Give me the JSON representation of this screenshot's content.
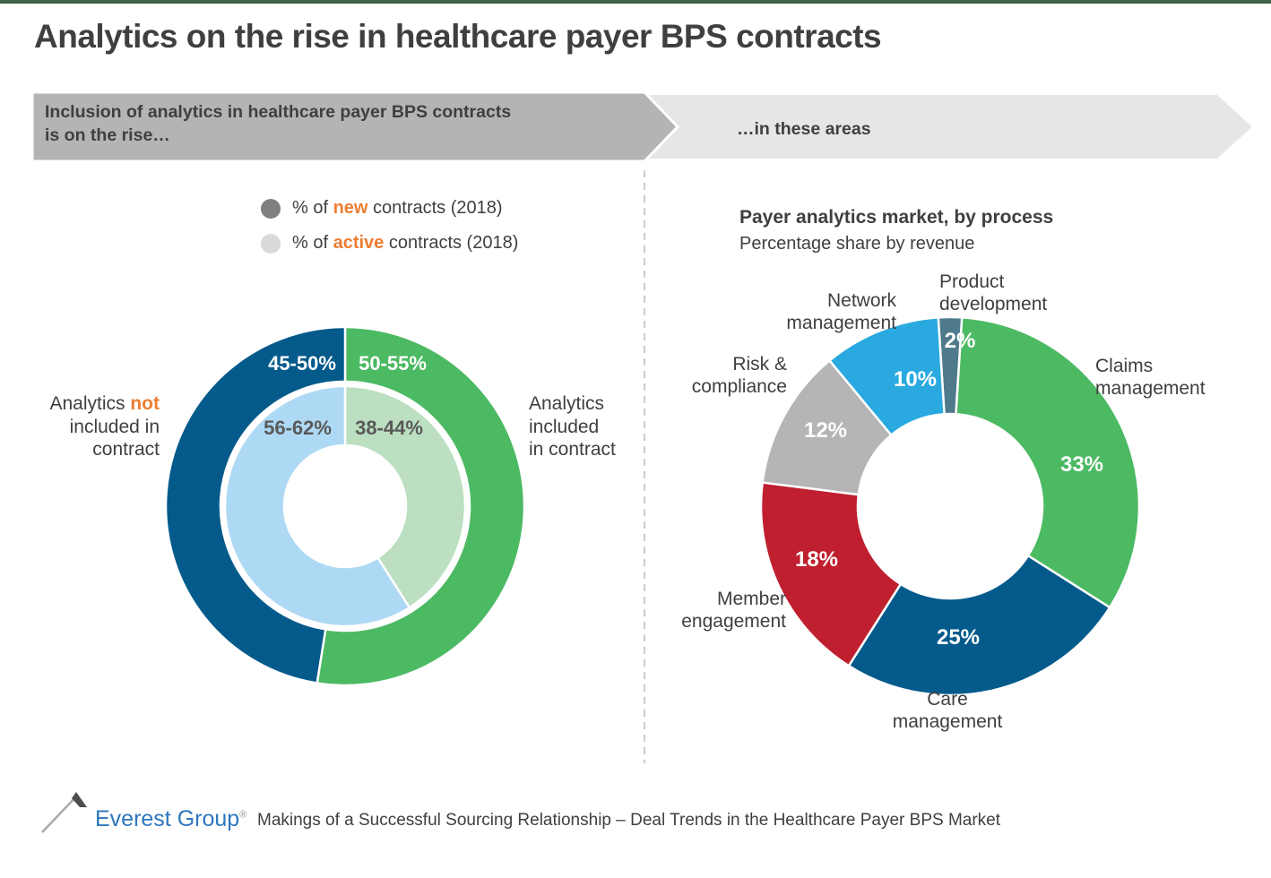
{
  "page": {
    "title": "Analytics on the rise in healthcare payer BPS contracts",
    "top_bar_color": "#3e6347"
  },
  "colors": {
    "orange_accent": "#ed7d31",
    "dark_blue": "#045a8b",
    "green": "#4cb963",
    "light_blue": "#aed9f4",
    "light_green": "#bbdfc0",
    "red": "#bf1f2e",
    "gray": "#b5b5b5",
    "cyan": "#29a9e0",
    "slate": "#4f7a8c",
    "text_gray": "#3f3f3f"
  },
  "banners": {
    "left": {
      "line1": "Inclusion of analytics in healthcare payer BPS contracts",
      "line2": "is on the rise…",
      "bg": "#b4b4b4"
    },
    "right": {
      "label": "…in these areas",
      "bg": "#e6e6e6"
    }
  },
  "legend": {
    "new": {
      "pre": "% of ",
      "em": "new",
      "post": " contracts (2018)",
      "dot_color": "#808080"
    },
    "active": {
      "pre": "% of ",
      "em": "active",
      "post": " contracts (2018)",
      "dot_color": "#d9d9d9"
    }
  },
  "left_chart": {
    "side_labels": {
      "not_included": {
        "l1a": "Analytics ",
        "l1b": "not",
        "l2": "included in",
        "l3": "contract"
      },
      "included": {
        "l1": "Analytics",
        "l2": "included",
        "l3": "in contract"
      }
    }
  },
  "right_chart": {
    "title": "Payer analytics market, by process",
    "subtitle": "Percentage share by revenue",
    "labels": {
      "product": {
        "l1": "Product",
        "l2": "development"
      },
      "claims": {
        "l1": "Claims",
        "l2": "management"
      },
      "care": {
        "l1": "Care",
        "l2": "management"
      },
      "member": {
        "l1": "Member",
        "l2": "engagement"
      },
      "risk": {
        "l1": "Risk &",
        "l2": "compliance"
      },
      "network": {
        "l1": "Network",
        "l2": "management"
      }
    }
  },
  "footer": {
    "brand": "Everest Group",
    "reg": "®",
    "text": "Makings of a Successful Sourcing Relationship – Deal Trends in the Healthcare Payer BPS Market"
  },
  "chart_data": [
    {
      "type": "pie",
      "name": "inclusion-of-analytics-nested-donut",
      "legend": [
        "% of new contracts (2018)",
        "% of active contracts (2018)"
      ],
      "legend_position": "top",
      "rings": [
        {
          "name": "new contracts 2018 (outer ring)",
          "start_angle_deg": 0,
          "slices": [
            {
              "label": "Analytics included in contract",
              "range": "50-55%",
              "value": 52.5,
              "color": "#4cb963"
            },
            {
              "label": "Analytics not included in contract",
              "range": "45-50%",
              "value": 47.5,
              "color": "#045a8b"
            }
          ]
        },
        {
          "name": "active contracts 2018 (inner ring)",
          "start_angle_deg": 0,
          "slices": [
            {
              "label": "Analytics included in contract",
              "range": "38-44%",
              "value": 41,
              "color": "#bbdfc0"
            },
            {
              "label": "Analytics not included in contract",
              "range": "56-62%",
              "value": 59,
              "color": "#aed9f4"
            }
          ]
        }
      ]
    },
    {
      "type": "pie",
      "name": "payer-analytics-market-by-process",
      "title": "Payer analytics market, by process",
      "subtitle": "Percentage share by revenue",
      "start_angle_deg": -3.6,
      "slices": [
        {
          "label": "Product development",
          "value": 2,
          "display": "2%",
          "color": "#4f7a8c"
        },
        {
          "label": "Claims management",
          "value": 33,
          "display": "33%",
          "color": "#4cb963"
        },
        {
          "label": "Care management",
          "value": 25,
          "display": "25%",
          "color": "#045a8b"
        },
        {
          "label": "Member engagement",
          "value": 18,
          "display": "18%",
          "color": "#bf1f2e"
        },
        {
          "label": "Risk & compliance",
          "value": 12,
          "display": "12%",
          "color": "#b5b5b5"
        },
        {
          "label": "Network management",
          "value": 10,
          "display": "10%",
          "color": "#29a9e0"
        }
      ]
    }
  ]
}
